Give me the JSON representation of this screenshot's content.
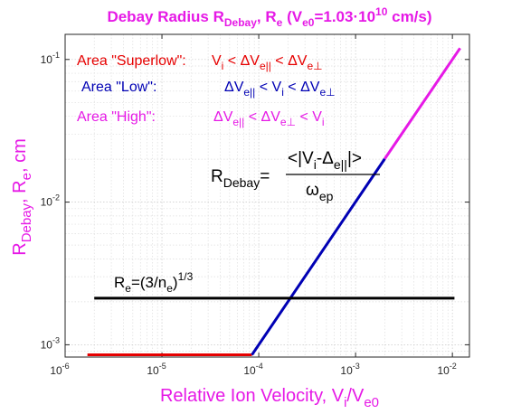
{
  "chart_data": {
    "type": "line",
    "title": {
      "prefix": "Debay Radius R",
      "sub1": "Debay",
      "mid": ", R",
      "sub2": "e",
      "part3": " (V",
      "sub3": "e0",
      "part4": "=1.03·10",
      "sup": "10",
      "part5": " cm/s)"
    },
    "xlabel": {
      "main": "Relative Ion Velocity, V",
      "sub1": "i",
      "mid": "/V",
      "sub2": "e0"
    },
    "ylabel": {
      "main": "R",
      "sub1": "Debay",
      "mid": ", R",
      "sub2": "e",
      "tail": ", cm"
    },
    "x_scale": "log",
    "y_scale": "log",
    "xlim": [
      1e-06,
      0.015
    ],
    "ylim": [
      0.00082,
      0.15
    ],
    "grid": true,
    "x_ticks": [
      {
        "base": "10",
        "exp": "-6",
        "value": 1e-06
      },
      {
        "base": "10",
        "exp": "-5",
        "value": 1e-05
      },
      {
        "base": "10",
        "exp": "-4",
        "value": 0.0001
      },
      {
        "base": "10",
        "exp": "-3",
        "value": 0.001
      },
      {
        "base": "10",
        "exp": "-2",
        "value": 0.01
      }
    ],
    "y_ticks": [
      {
        "base": "10",
        "exp": "-3",
        "value": 0.001
      },
      {
        "base": "10",
        "exp": "-2",
        "value": 0.01
      },
      {
        "base": "10",
        "exp": "-1",
        "value": 0.1
      }
    ],
    "series": [
      {
        "color": "#e60000",
        "x": [
          1.7e-06,
          8.5e-05
        ],
        "y": [
          0.00085,
          0.00085
        ]
      },
      {
        "color": "#0000b4",
        "x": [
          8.5e-05,
          0.002
        ],
        "y": [
          0.00085,
          0.0201
        ]
      },
      {
        "color": "#e619e6",
        "x": [
          0.002,
          0.012
        ],
        "y": [
          0.0201,
          0.12
        ]
      },
      {
        "color": "#000000",
        "x": [
          2e-06,
          0.0105
        ],
        "y": [
          0.00212,
          0.00212
        ]
      }
    ],
    "annotations": {
      "superlow": {
        "color": "#e60000",
        "label": "Area \"Superlow\":",
        "cond": [
          "V",
          "i",
          " < ",
          "ΔV",
          "e||",
          " < ",
          "ΔV",
          "e⊥"
        ]
      },
      "low": {
        "color": "#0000b4",
        "label": "Area \"Low\":",
        "cond": [
          "ΔV",
          "e||",
          " < ",
          "V",
          "i",
          " < ",
          "ΔV",
          "e⊥"
        ]
      },
      "high": {
        "color": "#e619e6",
        "label": "Area \"High\":",
        "cond": [
          "ΔV",
          "e||",
          " < ",
          "ΔV",
          "e⊥",
          " < ",
          "V",
          "i"
        ]
      },
      "debay_formula": {
        "lhs": "R",
        "lhs_sub": "Debay",
        "eq": "=",
        "num_open": "<|V",
        "num_sub1": "i",
        "num_mid": "-Δ",
        "num_sub2": "e||",
        "num_close": "|>",
        "den": "ω",
        "den_sub": "ep"
      },
      "re_formula": {
        "main": "R",
        "sub": "e",
        "mid": "=(3/n",
        "sub2": "e",
        "close": ")",
        "sup": "1/3"
      }
    }
  }
}
